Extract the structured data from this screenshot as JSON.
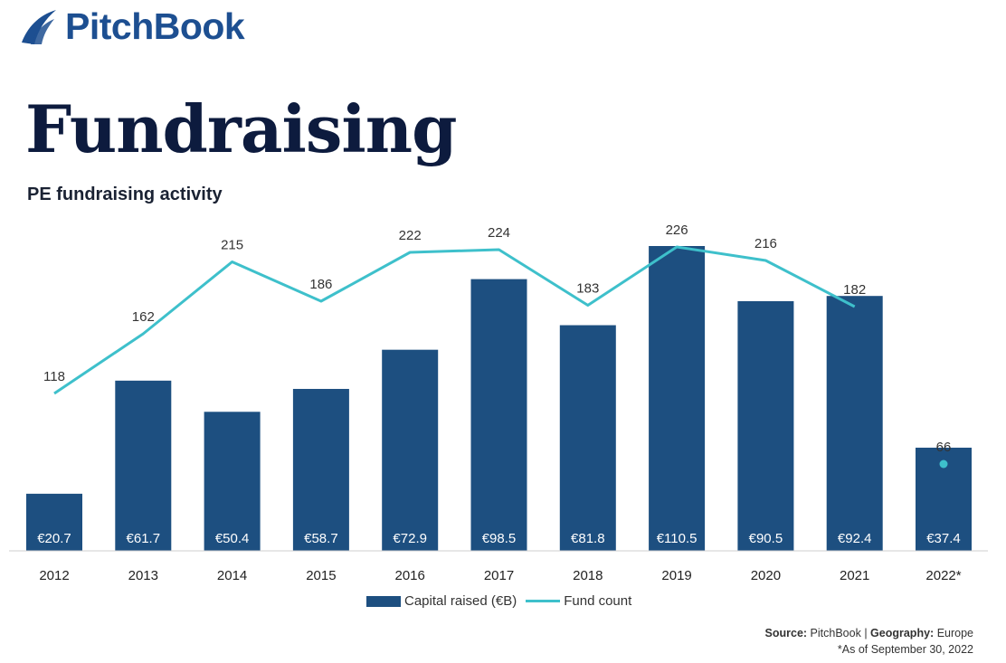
{
  "brand": {
    "name": "PitchBook"
  },
  "page_title": "Fundraising",
  "chart_title": "PE fundraising activity",
  "legend": {
    "bar_label": "Capital raised (€B)",
    "line_label": "Fund count"
  },
  "source": {
    "source_label": "Source:",
    "source_value": "PitchBook",
    "separator": "|",
    "geography_label": "Geography:",
    "geography_value": "Europe"
  },
  "note": "*As of September 30, 2022",
  "colors": {
    "bar": "#1d4f80",
    "line": "#3ec0cb",
    "title": "#0d1b3e",
    "brand": "#1d4f91"
  },
  "chart_data": {
    "type": "bar",
    "categories": [
      "2012",
      "2013",
      "2014",
      "2015",
      "2016",
      "2017",
      "2018",
      "2019",
      "2020",
      "2021",
      "2022*"
    ],
    "series": [
      {
        "name": "Capital raised (€B)",
        "type": "bar",
        "values": [
          20.7,
          61.7,
          50.4,
          58.7,
          72.9,
          98.5,
          81.8,
          110.5,
          90.5,
          92.4,
          37.4
        ],
        "labels": [
          "€20.7",
          "€61.7",
          "€50.4",
          "€58.7",
          "€72.9",
          "€98.5",
          "€81.8",
          "€110.5",
          "€90.5",
          "€92.4",
          "€37.4"
        ]
      },
      {
        "name": "Fund count",
        "type": "line",
        "values": [
          118,
          162,
          215,
          186,
          222,
          224,
          183,
          226,
          216,
          182,
          66
        ],
        "labels": [
          "118",
          "162",
          "215",
          "186",
          "222",
          "224",
          "183",
          "226",
          "216",
          "182",
          "66"
        ],
        "line_break_before_last": true
      }
    ]
  }
}
